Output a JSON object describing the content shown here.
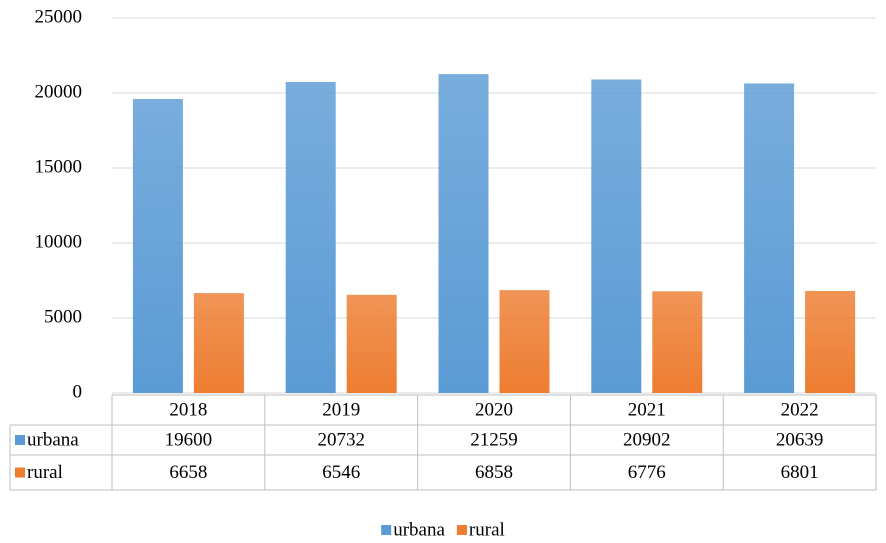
{
  "chart_data": {
    "type": "bar",
    "categories": [
      "2018",
      "2019",
      "2020",
      "2021",
      "2022"
    ],
    "series": [
      {
        "name": "urbana",
        "color": "#5b9bd5",
        "values": [
          19600,
          20732,
          21259,
          20902,
          20639
        ]
      },
      {
        "name": "rural",
        "color": "#ed7d31",
        "values": [
          6658,
          6546,
          6858,
          6776,
          6801
        ]
      }
    ],
    "ylim": [
      0,
      25000
    ],
    "yticks": [
      0,
      5000,
      10000,
      15000,
      20000,
      25000
    ],
    "grid": true,
    "data_table": true,
    "legend": "bottom"
  }
}
